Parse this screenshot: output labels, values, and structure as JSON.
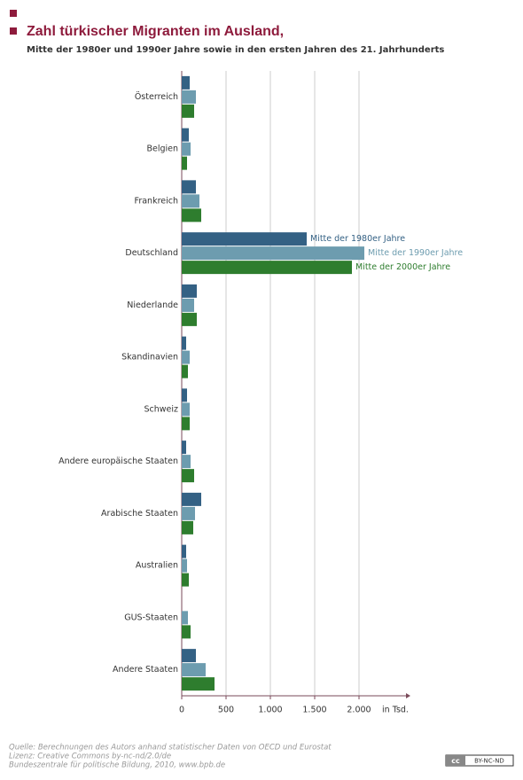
{
  "chart_data": {
    "type": "hbar",
    "title": "Zahl türkischer Migranten im Ausland,",
    "subtitle": "Mitte der 1980er und 1990er Jahre sowie in den ersten Jahren des 21. Jahrhunderts",
    "categories": [
      "Österreich",
      "Belgien",
      "Frankreich",
      "Deutschland",
      "Niederlande",
      "Skandinavien",
      "Schweiz",
      "Andere europäische Staaten",
      "Arabische Staaten",
      "Australien",
      "GUS-Staaten",
      "Andere Staaten"
    ],
    "series": [
      {
        "name": "Mitte der 1980er Jahre",
        "color": "#346184",
        "values": [
          90,
          80,
          160,
          1410,
          170,
          50,
          60,
          50,
          220,
          50,
          null,
          160
        ]
      },
      {
        "name": "Mitte der 1990er Jahre",
        "color": "#6d9caf",
        "values": [
          160,
          100,
          200,
          2060,
          140,
          90,
          90,
          100,
          150,
          60,
          70,
          270
        ]
      },
      {
        "name": "Mitte der 2000er Jahre",
        "color": "#2e7d2e",
        "values": [
          140,
          60,
          220,
          1920,
          170,
          70,
          90,
          140,
          130,
          80,
          100,
          370
        ]
      }
    ],
    "x_label": "in Tsd.",
    "xlim": [
      0,
      2530
    ],
    "xticks": [
      0,
      500,
      {
        "value": 1000,
        "label": "1.000"
      },
      {
        "value": 1500,
        "label": "1.500"
      },
      {
        "value": 2000,
        "label": "2.000"
      }
    ],
    "grid": true,
    "source": [
      "Quelle:  Berechnungen des Autors anhand statistischer Daten von OECD und Eurostat",
      "Lizenz: Creative Commons by-nc-nd/2.0/de",
      "Bundeszentrale für politische Bildung, 2010, www.bpb.de"
    ],
    "license_badge": [
      "cc",
      "BY-NC-ND"
    ]
  }
}
